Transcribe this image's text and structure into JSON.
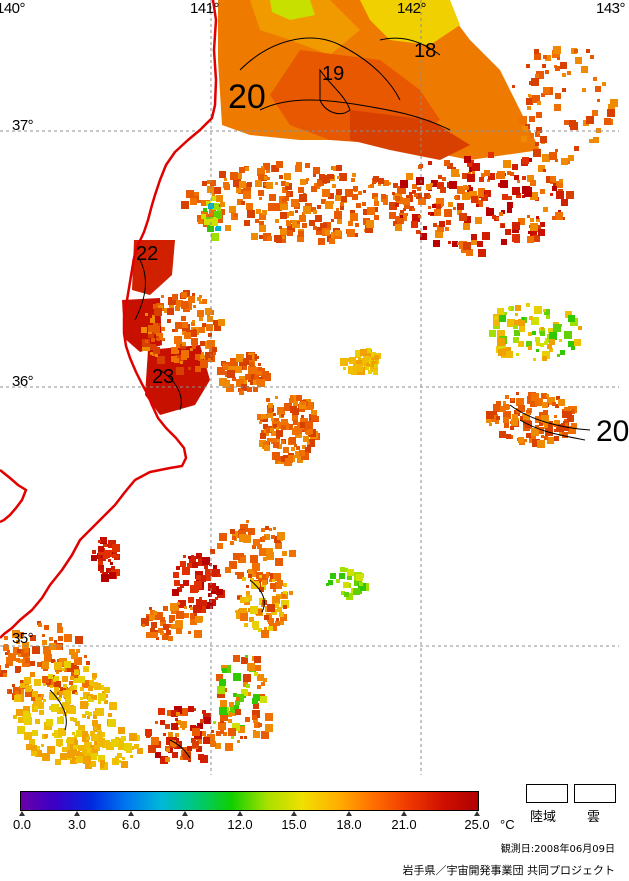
{
  "map": {
    "latitude_labels": [
      "37°",
      "36°",
      "35°"
    ],
    "longitude_labels": [
      "140°",
      "141°",
      "142°",
      "143°"
    ],
    "contour_labels": [
      "20",
      "19",
      "18",
      "22",
      "23",
      "20"
    ]
  },
  "legend": {
    "ticks": [
      "0.0",
      "3.0",
      "6.0",
      "9.0",
      "12.0",
      "15.0",
      "18.0",
      "21.0",
      "25.0"
    ],
    "unit": "°C",
    "scale_min": 0,
    "scale_max": 25,
    "colors": [
      "#6a00a8",
      "#3a00c8",
      "#0028e0",
      "#0078f0",
      "#00b8d8",
      "#00c878",
      "#10d000",
      "#a8e000",
      "#f0e000",
      "#ffb000",
      "#ff7000",
      "#f03a00",
      "#d01000",
      "#b00000"
    ],
    "land_label": "陸域",
    "cloud_label": "雲"
  },
  "footer": {
    "observation_date": "観測日:2008年06月09日",
    "credit": "岩手県／宇宙開発事業団 共同プロジェクト"
  },
  "colors": {
    "coastline": "#e00000",
    "grid": "#8c8c8c",
    "contour": "#000000"
  }
}
